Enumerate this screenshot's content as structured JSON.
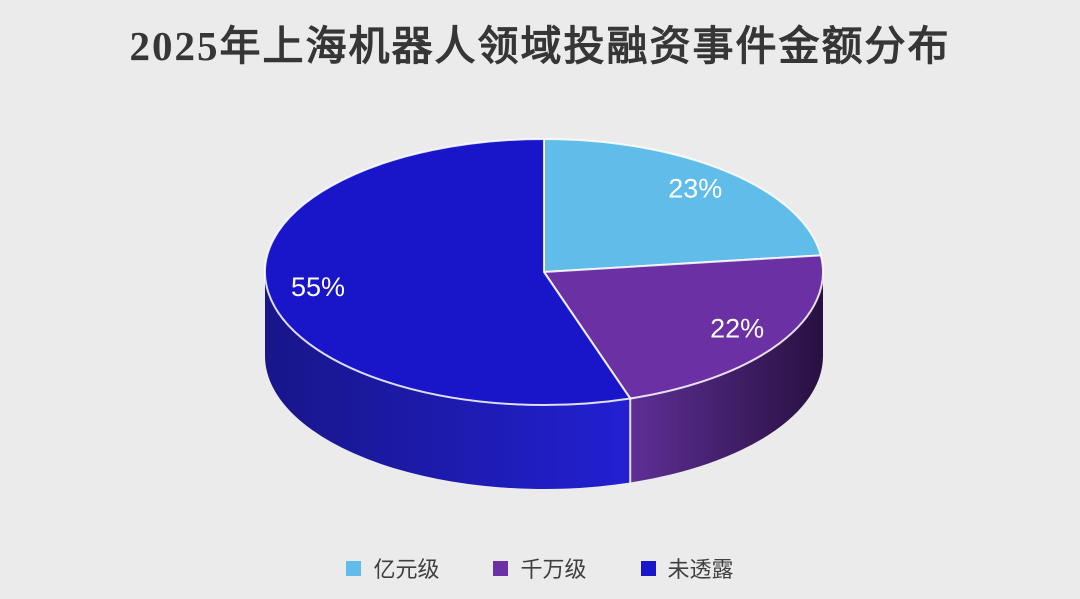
{
  "page": {
    "background_color": "#EBEBEB"
  },
  "chart_data": {
    "type": "pie",
    "style_3d": true,
    "title": "2025年上海机器人领域投融资事件金额分布",
    "title_color": "#363636",
    "categories": [
      "亿元级",
      "千万级",
      "未透露"
    ],
    "values": [
      23,
      22,
      55
    ],
    "data_labels": [
      "23%",
      "22%",
      "55%"
    ],
    "data_label_color": "#FFFFFF",
    "start_angle_deg": 0,
    "direction": "clockwise",
    "colors": [
      "#60BCE9",
      "#6A30A4",
      "#1915C9"
    ],
    "side_gradients": [
      null,
      {
        "left": "#5E2F96",
        "right": "#281040"
      },
      {
        "left": "#181689",
        "right": "#2220D2"
      }
    ],
    "edge_line_color": "rgba(255,255,255,0.85)",
    "legend_position": "bottom",
    "legend_text_color": "#3F3F3F"
  }
}
